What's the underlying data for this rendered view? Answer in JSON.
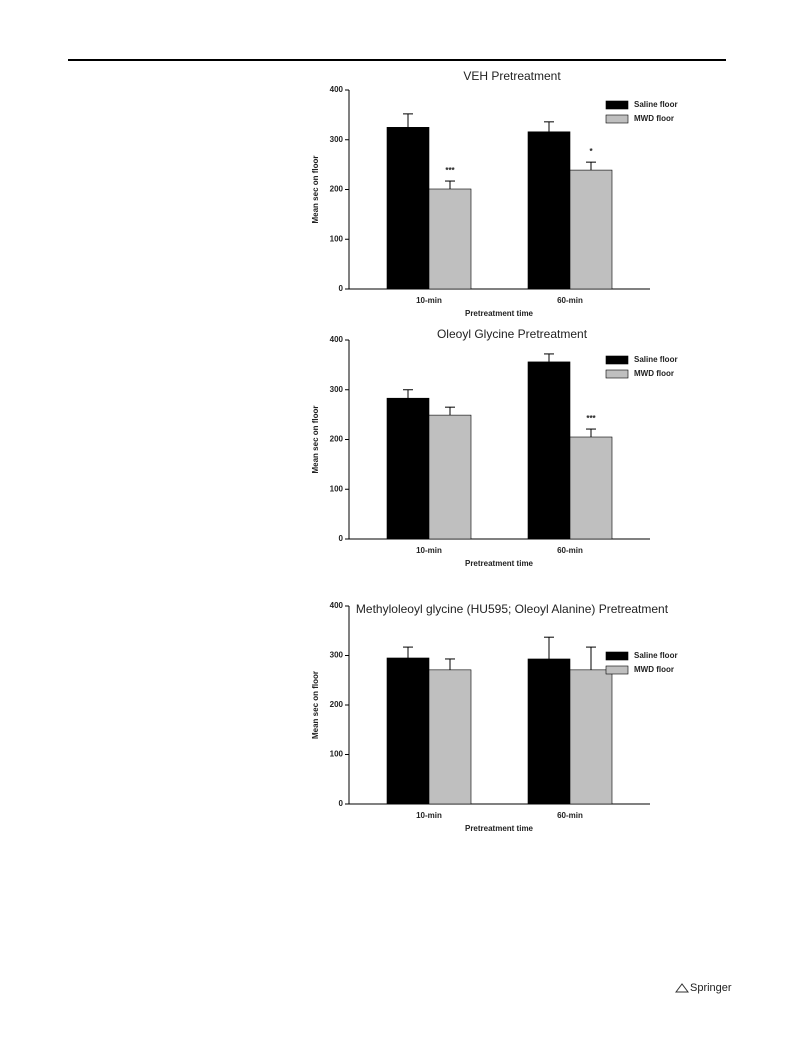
{
  "chart_data": [
    {
      "type": "bar",
      "title": "VEH Pretreatment",
      "x_label": "Pretreatment time",
      "y_label": "Mean sec on floor",
      "categories": [
        "10-min",
        "60-min"
      ],
      "ylim": [
        0,
        400
      ],
      "yticks": [
        0,
        100,
        200,
        300,
        400
      ],
      "grid": false,
      "legend": "upper right",
      "series": [
        {
          "name": "Saline floor",
          "color": "#000000",
          "values": [
            325,
            316
          ],
          "errors": [
            27,
            20
          ]
        },
        {
          "name": "MWD floor",
          "color": "#bfbfbf",
          "values": [
            201,
            239
          ],
          "errors": [
            16,
            16
          ],
          "significance": [
            "***",
            "*"
          ]
        }
      ]
    },
    {
      "type": "bar",
      "title": "Oleoyl Glycine Pretreatment",
      "x_label": "Pretreatment time",
      "y_label": "Mean sec on floor",
      "categories": [
        "10-min",
        "60-min"
      ],
      "ylim": [
        0,
        400
      ],
      "yticks": [
        0,
        100,
        200,
        300,
        400
      ],
      "grid": false,
      "legend": "upper right",
      "series": [
        {
          "name": "Saline floor",
          "color": "#000000",
          "values": [
            283,
            356
          ],
          "errors": [
            17,
            16
          ]
        },
        {
          "name": "MWD floor",
          "color": "#bfbfbf",
          "values": [
            249,
            205
          ],
          "errors": [
            16,
            16
          ],
          "significance": [
            null,
            "***"
          ]
        }
      ]
    },
    {
      "type": "bar",
      "title": "Methyloleoyl glycine (HU595; Oleoyl Alanine) Pretreatment",
      "x_label": "Pretreatment time",
      "y_label": "Mean sec on floor",
      "categories": [
        "10-min",
        "60-min"
      ],
      "ylim": [
        0,
        400
      ],
      "yticks": [
        0,
        100,
        200,
        300,
        400
      ],
      "grid": false,
      "legend": "upper right",
      "series": [
        {
          "name": "Saline floor",
          "color": "#000000",
          "values": [
            295,
            293
          ],
          "errors": [
            22,
            44
          ]
        },
        {
          "name": "MWD floor",
          "color": "#bfbfbf",
          "values": [
            271,
            271
          ],
          "errors": [
            22,
            46
          ]
        }
      ]
    }
  ],
  "footer": {
    "publisher": "Springer"
  }
}
